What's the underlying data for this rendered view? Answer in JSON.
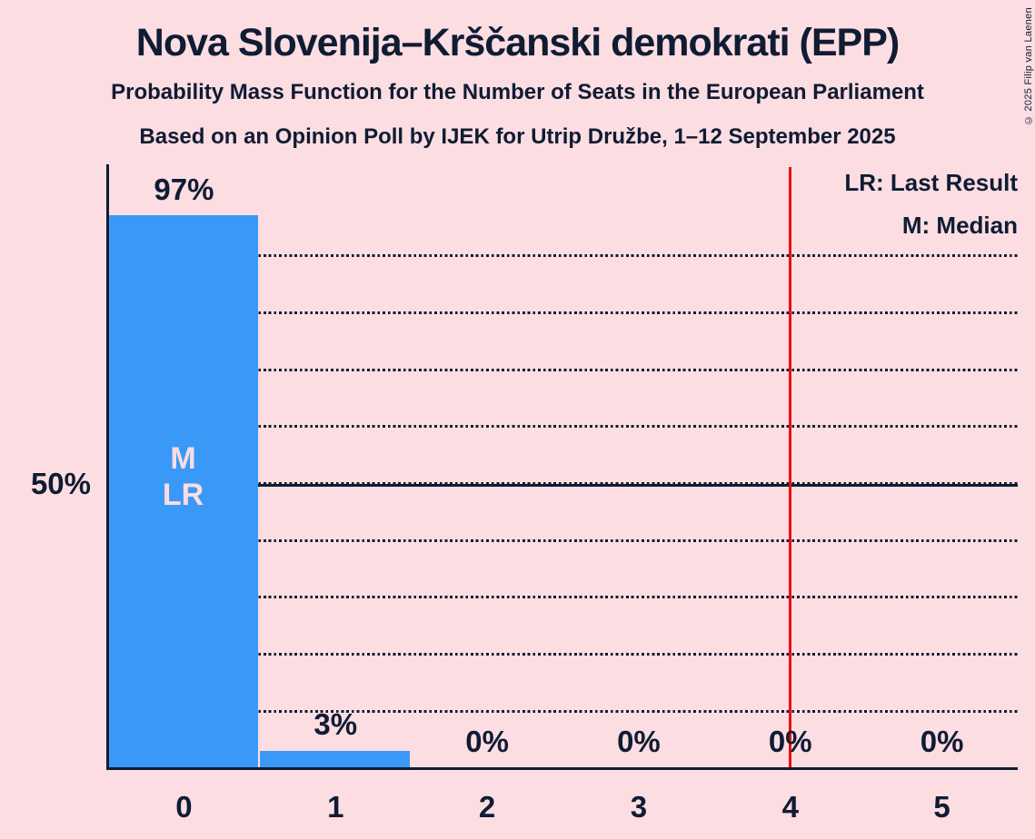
{
  "title": "Nova Slovenija–Krščanski demokrati (EPP)",
  "subtitle1": "Probability Mass Function for the Number of Seats in the European Parliament",
  "subtitle2": "Based on an Opinion Poll by IJEK for Utrip Družbe, 1–12 September 2025",
  "copyright": "© 2025 Filip van Laenen",
  "legend": {
    "last_result": "LR: Last Result",
    "median": "M: Median"
  },
  "annotations": {
    "median": "M",
    "last_result": "LR"
  },
  "colors": {
    "background": "#fcdde2",
    "ink": "#0f1c33",
    "bar": "#3a99f7",
    "last_result_line": "#ec0e0e"
  },
  "chart_data": {
    "type": "bar",
    "title": "Nova Slovenija–Krščanski demokrati (EPP)",
    "categories": [
      "0",
      "1",
      "2",
      "3",
      "4",
      "5"
    ],
    "values": [
      97,
      3,
      0,
      0,
      0,
      0
    ],
    "value_labels": [
      "97%",
      "3%",
      "0%",
      "0%",
      "0%",
      "0%"
    ],
    "ylim": [
      0,
      100
    ],
    "y_axis_tick_label": "50%",
    "y_axis_tick_pct": 50,
    "gridlines_pct": [
      10,
      20,
      30,
      40,
      50,
      60,
      70,
      80,
      90
    ],
    "solid_line_pct": 50,
    "last_result_line_x": 4.5,
    "median_category": "0",
    "last_result_category": "0",
    "legend_position": "top-right",
    "grid": "dotted-horizontal"
  }
}
